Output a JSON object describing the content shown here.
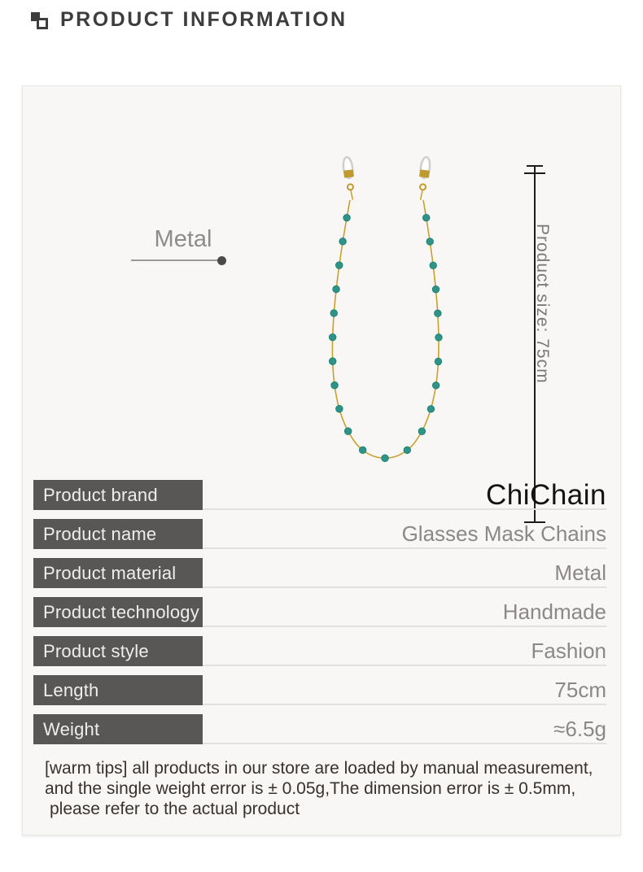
{
  "header": {
    "title": "PRODUCT INFORMATION"
  },
  "photo": {
    "material_callout": "Metal",
    "size_note": "Product size: 75cm"
  },
  "table": {
    "rows": [
      {
        "label": "Product brand",
        "value": "ChiChain"
      },
      {
        "label": "Product name",
        "value": "Glasses Mask Chains"
      },
      {
        "label": "Product material",
        "value": "Metal"
      },
      {
        "label": "Product technology",
        "value": "Handmade"
      },
      {
        "label": "Product style",
        "value": "Fashion"
      },
      {
        "label": "Length",
        "value": "75cm"
      },
      {
        "label": "Weight",
        "value": "≈6.5g"
      }
    ]
  },
  "tips": {
    "lines": [
      "[warm tips] all products in our store are loaded by manual measurement,",
      "and the single weight error is ± 0.05g,The dimension error is ± 0.5mm,",
      "please refer to the actual product"
    ]
  },
  "colors": {
    "chain_gold": "#c8a02c",
    "bead_teal": "#2e9487",
    "bead_edge": "#1a7c70",
    "label_chip_bg": "#595656",
    "panel_bg": "#f8f7f5"
  }
}
